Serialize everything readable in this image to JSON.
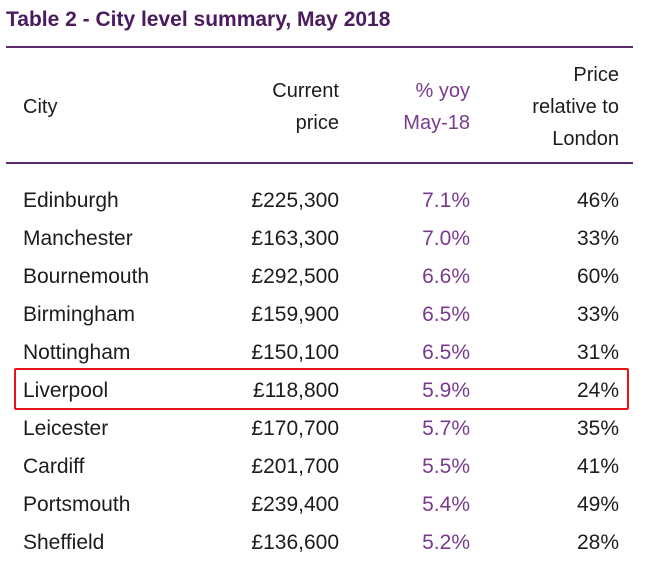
{
  "title": "Table 2 - City level summary, May 2018",
  "headers": {
    "city": "City",
    "price_line1": "Current",
    "price_line2": "price",
    "yoy_line1": "% yoy",
    "yoy_line2": "May-18",
    "rel_line1": "Price",
    "rel_line2": "relative to",
    "rel_line3": "London"
  },
  "colors": {
    "title": "#4b1b5e",
    "rule": "#5a2a6e",
    "yoy": "#7a3b8c",
    "highlight_border": "#e8141c"
  },
  "highlighted_city": "Liverpool",
  "rows": [
    {
      "city": "Edinburgh",
      "price": "£225,300",
      "yoy": "7.1%",
      "rel": "46%"
    },
    {
      "city": "Manchester",
      "price": "£163,300",
      "yoy": "7.0%",
      "rel": "33%"
    },
    {
      "city": "Bournemouth",
      "price": "£292,500",
      "yoy": "6.6%",
      "rel": "60%"
    },
    {
      "city": "Birmingham",
      "price": "£159,900",
      "yoy": "6.5%",
      "rel": "33%"
    },
    {
      "city": "Nottingham",
      "price": "£150,100",
      "yoy": "6.5%",
      "rel": "31%"
    },
    {
      "city": "Liverpool",
      "price": "£118,800",
      "yoy": "5.9%",
      "rel": "24%"
    },
    {
      "city": "Leicester",
      "price": "£170,700",
      "yoy": "5.7%",
      "rel": "35%"
    },
    {
      "city": "Cardiff",
      "price": "£201,700",
      "yoy": "5.5%",
      "rel": "41%"
    },
    {
      "city": "Portsmouth",
      "price": "£239,400",
      "yoy": "5.4%",
      "rel": "49%"
    },
    {
      "city": "Sheffield",
      "price": "£136,600",
      "yoy": "5.2%",
      "rel": "28%"
    }
  ]
}
